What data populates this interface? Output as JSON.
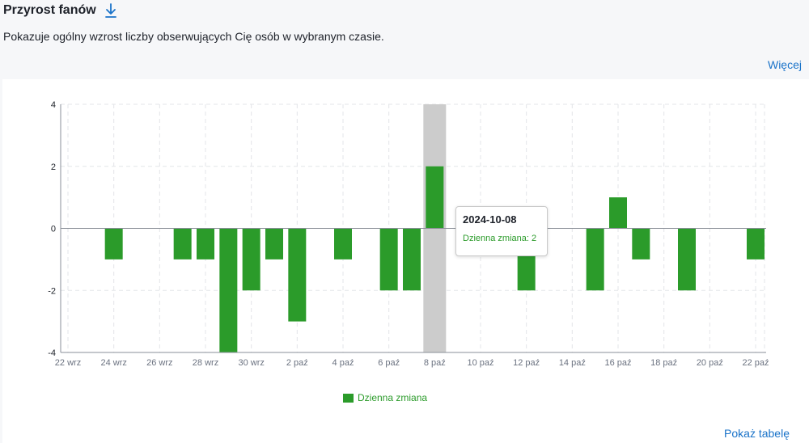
{
  "header": {
    "title": "Przyrost fanów",
    "download_icon": "download-icon",
    "description": "Pokazuje ogólny wzrost liczby obserwujących Cię osób w wybranym czasie.",
    "more_label": "Więcej"
  },
  "colors": {
    "bar": "#2b9b2a",
    "highlight": "#cccccc",
    "link": "#1a73c9"
  },
  "chart_data": {
    "type": "bar",
    "title": "",
    "xlabel": "",
    "ylabel": "",
    "ylim": [
      -4,
      4
    ],
    "yticks": [
      -4,
      -2,
      0,
      2,
      4
    ],
    "categories": [
      "22 wrz",
      "23 wrz",
      "24 wrz",
      "25 wrz",
      "26 wrz",
      "27 wrz",
      "28 wrz",
      "29 wrz",
      "30 wrz",
      "1 paź",
      "2 paź",
      "3 paź",
      "4 paź",
      "5 paź",
      "6 paź",
      "7 paź",
      "8 paź",
      "9 paź",
      "10 paź",
      "11 paź",
      "12 paź",
      "13 paź",
      "14 paź",
      "15 paź",
      "16 paź",
      "17 paź",
      "18 paź",
      "19 paź",
      "20 paź",
      "21 paź",
      "22 paź"
    ],
    "tick_labels": [
      "22 wrz",
      "24 wrz",
      "26 wrz",
      "28 wrz",
      "30 wrz",
      "2 paź",
      "4 paź",
      "6 paź",
      "8 paź",
      "10 paź",
      "12 paź",
      "14 paź",
      "16 paź",
      "18 paź",
      "20 paź",
      "22 paź"
    ],
    "series": [
      {
        "name": "Dzienna zmiana",
        "values": [
          0,
          0,
          -1,
          0,
          0,
          -1,
          -1,
          -4,
          -2,
          -1,
          -3,
          0,
          -1,
          0,
          -2,
          -2,
          2,
          0,
          0,
          0,
          -2,
          0,
          0,
          -2,
          1,
          -1,
          0,
          -2,
          0,
          0,
          -1
        ]
      }
    ],
    "highlight_index": 16,
    "grid": true,
    "legend": "bottom-center"
  },
  "legend_label": "Dzienna zmiana",
  "tooltip": {
    "date": "2024-10-08",
    "value_text": "Dzienna zmiana: 2"
  },
  "footer": {
    "table_label": "Pokaż tabelę"
  }
}
